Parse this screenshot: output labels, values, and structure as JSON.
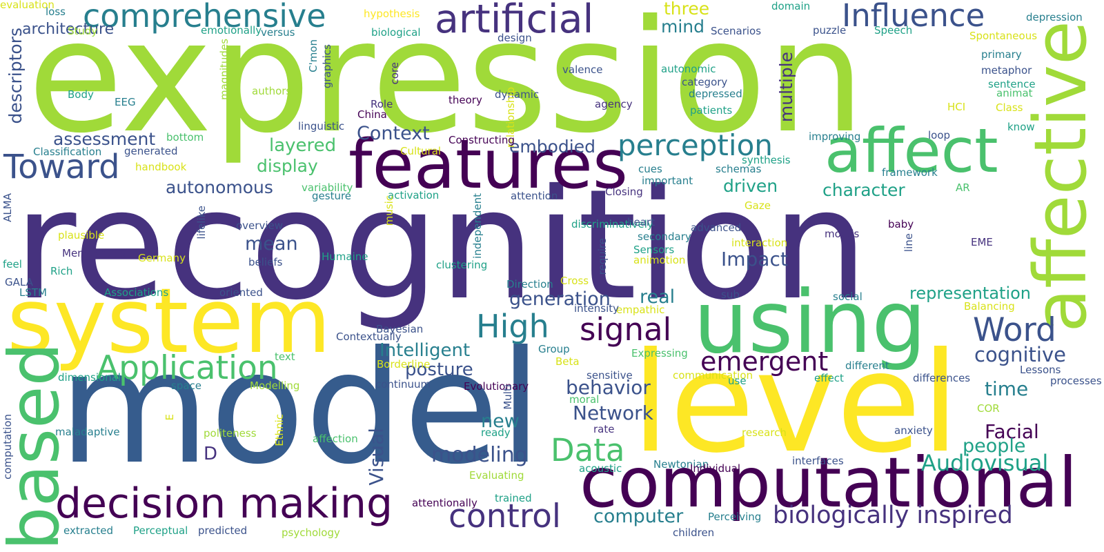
{
  "palette": {
    "purple": "#46327e",
    "dark": "#440154",
    "indigo": "#3b528b",
    "blue": "#365c8d",
    "teal": "#277f8e",
    "cyan": "#1fa187",
    "green": "#4ac16d",
    "lime": "#a0da39",
    "yellow": "#fde725",
    "gold": "#d8e219"
  },
  "words": [
    {
      "text": "expression",
      "c": "lime"
    },
    {
      "text": "recognition",
      "c": "purple"
    },
    {
      "text": "model",
      "c": "blue"
    },
    {
      "text": "level",
      "c": "yellow"
    },
    {
      "text": "system",
      "c": "yellow"
    },
    {
      "text": "using",
      "c": "green"
    },
    {
      "text": "features",
      "c": "dark"
    },
    {
      "text": "affect",
      "c": "green"
    },
    {
      "text": "computational",
      "c": "dark"
    },
    {
      "text": "affective",
      "c": "lime"
    },
    {
      "text": "based",
      "c": "green"
    },
    {
      "text": "decision making",
      "c": "dark"
    },
    {
      "text": "artificial",
      "c": "purple"
    },
    {
      "text": "comprehensive",
      "c": "teal"
    },
    {
      "text": "Influence",
      "c": "indigo"
    },
    {
      "text": "Application",
      "c": "green"
    },
    {
      "text": "perception",
      "c": "teal"
    },
    {
      "text": "Toward",
      "c": "indigo"
    },
    {
      "text": "signal",
      "c": "dark"
    },
    {
      "text": "High",
      "c": "teal"
    },
    {
      "text": "Word",
      "c": "indigo"
    },
    {
      "text": "Data",
      "c": "green"
    },
    {
      "text": "control",
      "c": "purple"
    },
    {
      "text": "biologically inspired",
      "c": "purple"
    },
    {
      "text": "emergent",
      "c": "dark"
    },
    {
      "text": "Audiovisual",
      "c": "cyan"
    },
    {
      "text": "computer",
      "c": "teal"
    },
    {
      "text": "modeling",
      "c": "indigo"
    },
    {
      "text": "cognitive",
      "c": "indigo"
    },
    {
      "text": "Facial",
      "c": "dark"
    },
    {
      "text": "people",
      "c": "cyan"
    },
    {
      "text": "time",
      "c": "teal"
    },
    {
      "text": "Network",
      "c": "indigo"
    },
    {
      "text": "behavior",
      "c": "indigo"
    },
    {
      "text": "generation",
      "c": "indigo"
    },
    {
      "text": "real",
      "c": "teal"
    },
    {
      "text": "Impact",
      "c": "indigo"
    },
    {
      "text": "mean",
      "c": "indigo"
    },
    {
      "text": "Intelligent",
      "c": "teal"
    },
    {
      "text": "posture",
      "c": "indigo"
    },
    {
      "text": "new",
      "c": "teal"
    },
    {
      "text": "D",
      "c": "purple"
    },
    {
      "text": "Visual",
      "c": "indigo"
    },
    {
      "text": "representation",
      "c": "cyan"
    },
    {
      "text": "character",
      "c": "cyan"
    },
    {
      "text": "driven",
      "c": "cyan"
    },
    {
      "text": "multiple",
      "c": "purple"
    },
    {
      "text": "mind",
      "c": "teal"
    },
    {
      "text": "three",
      "c": "gold"
    },
    {
      "text": "Context",
      "c": "indigo"
    },
    {
      "text": "embodied",
      "c": "indigo"
    },
    {
      "text": "layered",
      "c": "green"
    },
    {
      "text": "display",
      "c": "green"
    },
    {
      "text": "autonomous",
      "c": "indigo"
    },
    {
      "text": "assessment",
      "c": "indigo"
    },
    {
      "text": "descriptors",
      "c": "indigo"
    },
    {
      "text": "architecture",
      "c": "indigo"
    },
    {
      "text": "loss",
      "c": "teal"
    },
    {
      "text": "Study",
      "c": "lime"
    },
    {
      "text": "emotionally",
      "c": "cyan"
    },
    {
      "text": "versus",
      "c": "teal"
    },
    {
      "text": "hypothesis",
      "c": "yellow"
    },
    {
      "text": "biological",
      "c": "cyan"
    },
    {
      "text": "design",
      "c": "indigo"
    },
    {
      "text": "domain",
      "c": "cyan"
    },
    {
      "text": "depression",
      "c": "teal"
    },
    {
      "text": "puzzle",
      "c": "indigo"
    },
    {
      "text": "Speech",
      "c": "cyan"
    },
    {
      "text": "Spontaneous",
      "c": "gold"
    },
    {
      "text": "Scenarios",
      "c": "indigo"
    },
    {
      "text": "primary",
      "c": "teal"
    },
    {
      "text": "metaphor",
      "c": "indigo"
    },
    {
      "text": "sentence",
      "c": "cyan"
    },
    {
      "text": "animat",
      "c": "green"
    },
    {
      "text": "Class",
      "c": "gold"
    },
    {
      "text": "HCI",
      "c": "gold"
    },
    {
      "text": "know",
      "c": "cyan"
    },
    {
      "text": "loop",
      "c": "indigo"
    },
    {
      "text": "improving",
      "c": "teal"
    },
    {
      "text": "synthesis",
      "c": "cyan"
    },
    {
      "text": "framework",
      "c": "teal"
    },
    {
      "text": "AR",
      "c": "green"
    },
    {
      "text": "autonomic",
      "c": "cyan"
    },
    {
      "text": "category",
      "c": "indigo"
    },
    {
      "text": "depressed",
      "c": "teal"
    },
    {
      "text": "patients",
      "c": "cyan"
    },
    {
      "text": "valence",
      "c": "indigo"
    },
    {
      "text": "dynamic",
      "c": "indigo"
    },
    {
      "text": "theory",
      "c": "dark"
    },
    {
      "text": "agency",
      "c": "purple"
    },
    {
      "text": "authors",
      "c": "lime"
    },
    {
      "text": "core",
      "c": "purple"
    },
    {
      "text": "Role",
      "c": "purple"
    },
    {
      "text": "China",
      "c": "dark"
    },
    {
      "text": "linguistic",
      "c": "indigo"
    },
    {
      "text": "C'mon",
      "c": "teal"
    },
    {
      "text": "graphics",
      "c": "indigo"
    },
    {
      "text": "magnitudes",
      "c": "lime"
    },
    {
      "text": "relationship",
      "c": "gold"
    },
    {
      "text": "EEG",
      "c": "teal"
    },
    {
      "text": "Body",
      "c": "cyan"
    },
    {
      "text": "bottom",
      "c": "green"
    },
    {
      "text": "generated",
      "c": "indigo"
    },
    {
      "text": "Classification",
      "c": "teal"
    },
    {
      "text": "handbook",
      "c": "gold"
    },
    {
      "text": "Constructing",
      "c": "dark"
    },
    {
      "text": "Cultural",
      "c": "gold"
    },
    {
      "text": "cues",
      "c": "teal"
    },
    {
      "text": "important",
      "c": "teal"
    },
    {
      "text": "schemas",
      "c": "teal"
    },
    {
      "text": "Closing",
      "c": "purple"
    },
    {
      "text": "variability",
      "c": "green"
    },
    {
      "text": "gesture",
      "c": "teal"
    },
    {
      "text": "activation",
      "c": "cyan"
    },
    {
      "text": "attention",
      "c": "indigo"
    },
    {
      "text": "Gaze",
      "c": "gold"
    },
    {
      "text": "ALMA",
      "c": "indigo"
    },
    {
      "text": "plausible",
      "c": "gold"
    },
    {
      "text": "overview",
      "c": "indigo"
    },
    {
      "text": "lifelike",
      "c": "indigo"
    },
    {
      "text": "Membership",
      "c": "purple"
    },
    {
      "text": "Germany",
      "c": "gold"
    },
    {
      "text": "beliefs",
      "c": "indigo"
    },
    {
      "text": "Humaine",
      "c": "cyan"
    },
    {
      "text": "music",
      "c": "gold"
    },
    {
      "text": "independent",
      "c": "teal"
    },
    {
      "text": "discriminatively",
      "c": "cyan"
    },
    {
      "text": "heart",
      "c": "indigo"
    },
    {
      "text": "secondary",
      "c": "teal"
    },
    {
      "text": "advanced",
      "c": "indigo"
    },
    {
      "text": "interaction",
      "c": "gold"
    },
    {
      "text": "Sensors",
      "c": "cyan"
    },
    {
      "text": "animotion",
      "c": "gold"
    },
    {
      "text": "require",
      "c": "indigo"
    },
    {
      "text": "moods",
      "c": "purple"
    },
    {
      "text": "baby",
      "c": "dark"
    },
    {
      "text": "EME",
      "c": "purple"
    },
    {
      "text": "line",
      "c": "indigo"
    },
    {
      "text": "feel",
      "c": "cyan"
    },
    {
      "text": "Rich",
      "c": "cyan"
    },
    {
      "text": "clustering",
      "c": "cyan"
    },
    {
      "text": "GALA",
      "c": "indigo"
    },
    {
      "text": "LSTM",
      "c": "teal"
    },
    {
      "text": "Associations",
      "c": "cyan"
    },
    {
      "text": "oriented",
      "c": "indigo"
    },
    {
      "text": "Direction",
      "c": "teal"
    },
    {
      "text": "Cross",
      "c": "gold"
    },
    {
      "text": "sub",
      "c": "indigo"
    },
    {
      "text": "empathic",
      "c": "gold"
    },
    {
      "text": "intensity",
      "c": "indigo"
    },
    {
      "text": "social",
      "c": "teal"
    },
    {
      "text": "Balancing",
      "c": "gold"
    },
    {
      "text": "Bayesian",
      "c": "indigo"
    },
    {
      "text": "Contextually",
      "c": "indigo"
    },
    {
      "text": "Group",
      "c": "teal"
    },
    {
      "text": "Expressing",
      "c": "green"
    },
    {
      "text": "Borderline",
      "c": "gold"
    },
    {
      "text": "Beta",
      "c": "gold"
    },
    {
      "text": "sensitive",
      "c": "indigo"
    },
    {
      "text": "different",
      "c": "teal"
    },
    {
      "text": "Lessons",
      "c": "indigo"
    },
    {
      "text": "processes",
      "c": "indigo"
    },
    {
      "text": "text",
      "c": "green"
    },
    {
      "text": "dimensional",
      "c": "cyan"
    },
    {
      "text": "space",
      "c": "teal"
    },
    {
      "text": "Modelling",
      "c": "lime"
    },
    {
      "text": "continuum",
      "c": "indigo"
    },
    {
      "text": "Evolutionary",
      "c": "dark"
    },
    {
      "text": "moral",
      "c": "green"
    },
    {
      "text": "communication",
      "c": "gold"
    },
    {
      "text": "use",
      "c": "cyan"
    },
    {
      "text": "effect",
      "c": "cyan"
    },
    {
      "text": "differences",
      "c": "indigo"
    },
    {
      "text": "Multi",
      "c": "indigo"
    },
    {
      "text": "COR",
      "c": "lime"
    },
    {
      "text": "computation",
      "c": "indigo"
    },
    {
      "text": "maladaptive",
      "c": "teal"
    },
    {
      "text": "E",
      "c": "gold"
    },
    {
      "text": "politeness",
      "c": "lime"
    },
    {
      "text": "Ethnic",
      "c": "gold"
    },
    {
      "text": "affection",
      "c": "green"
    },
    {
      "text": "ready",
      "c": "cyan"
    },
    {
      "text": "rate",
      "c": "purple"
    },
    {
      "text": "research",
      "c": "gold"
    },
    {
      "text": "anxiety",
      "c": "indigo"
    },
    {
      "text": "Newtonian",
      "c": "teal"
    },
    {
      "text": "acoustic",
      "c": "cyan"
    },
    {
      "text": "Individual",
      "c": "dark"
    },
    {
      "text": "interfaces",
      "c": "indigo"
    },
    {
      "text": "Evaluating",
      "c": "lime"
    },
    {
      "text": "trained",
      "c": "cyan"
    },
    {
      "text": "attentionally",
      "c": "dark"
    },
    {
      "text": "Perceiving",
      "c": "teal"
    },
    {
      "text": "extracted",
      "c": "teal"
    },
    {
      "text": "Perceptual",
      "c": "cyan"
    },
    {
      "text": "predicted",
      "c": "indigo"
    },
    {
      "text": "psychology",
      "c": "lime"
    },
    {
      "text": "children",
      "c": "indigo"
    },
    {
      "text": "evaluation",
      "c": "gold"
    }
  ]
}
